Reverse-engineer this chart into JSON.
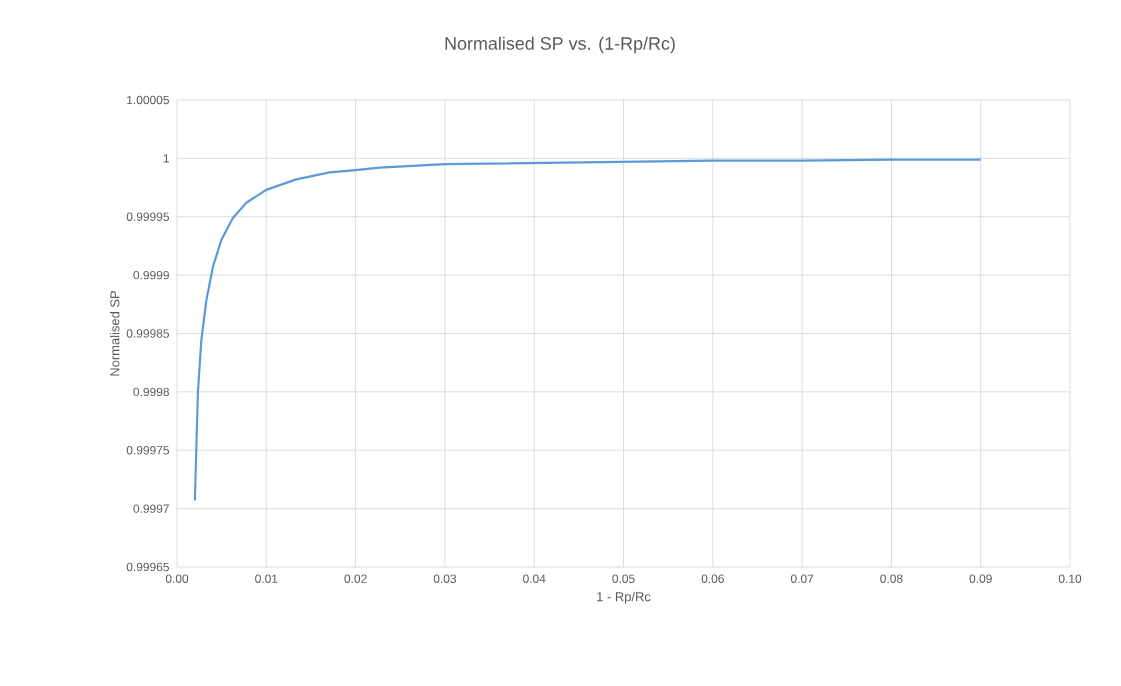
{
  "chart_data": {
    "type": "line",
    "title": "Normalised SP vs. (1-Rp/Rc)",
    "xlabel": "1 - Rp/Rc",
    "ylabel": "Normalised SP",
    "x": [
      0.002,
      0.00234,
      0.00272,
      0.00328,
      0.00402,
      0.00496,
      0.00626,
      0.00776,
      0.01,
      0.01336,
      0.01709,
      0.02,
      0.02269,
      0.03,
      0.04,
      0.05,
      0.06,
      0.07,
      0.08,
      0.09
    ],
    "series": [
      {
        "color": "#5b9bd5",
        "values": [
          0.999707,
          0.999799,
          0.999844,
          0.999878,
          0.999907,
          0.99993,
          0.999949,
          0.999962,
          0.999973,
          0.999982,
          0.999988,
          0.99999,
          0.999992,
          0.999995,
          0.999996,
          0.999997,
          0.999998,
          0.999998,
          0.999999,
          0.999999
        ]
      }
    ],
    "xlim": [
      0,
      0.1
    ],
    "ylim": [
      0.99965,
      1.00005
    ],
    "xticks": [
      {
        "value": 0,
        "label": "0.00"
      },
      {
        "value": 0.01,
        "label": "0.01"
      },
      {
        "value": 0.02,
        "label": "0.02"
      },
      {
        "value": 0.03,
        "label": "0.03"
      },
      {
        "value": 0.04,
        "label": "0.04"
      },
      {
        "value": 0.05,
        "label": "0.05"
      },
      {
        "value": 0.06,
        "label": "0.06"
      },
      {
        "value": 0.07,
        "label": "0.07"
      },
      {
        "value": 0.08,
        "label": "0.08"
      },
      {
        "value": 0.09,
        "label": "0.09"
      },
      {
        "value": 0.1,
        "label": "0.10"
      }
    ],
    "yticks": [
      0.99965,
      0.9997,
      0.99975,
      0.9998,
      0.99985,
      0.9999,
      0.99995,
      1,
      1.00005
    ],
    "grid": true,
    "legend": false,
    "marker": "none",
    "line_style": "solid"
  }
}
